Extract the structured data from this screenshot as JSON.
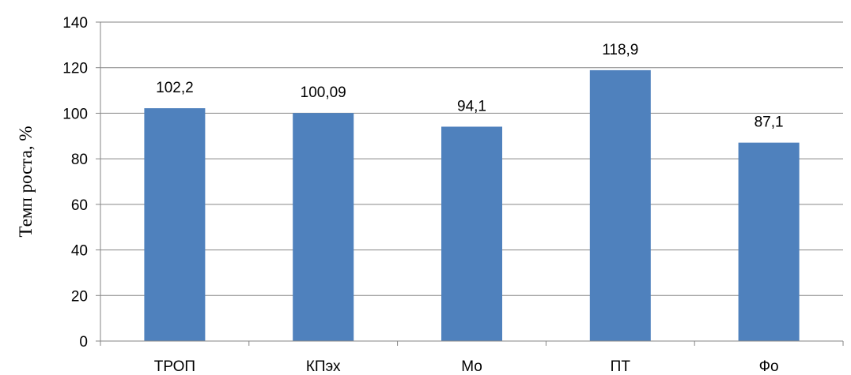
{
  "chart_data": {
    "type": "bar",
    "title": "",
    "xlabel": "",
    "ylabel": "Темп роста, %",
    "categories": [
      "ТРОП",
      "КПэх",
      "Мо",
      "ПТ",
      "Фо"
    ],
    "values": [
      102.2,
      100.09,
      94.1,
      118.9,
      87.1
    ],
    "data_labels": [
      "102,2",
      "100,09",
      "94,1",
      "118,9",
      "87,1"
    ],
    "ylim": [
      0,
      140
    ],
    "yticks": [
      "0",
      "20",
      "40",
      "60",
      "80",
      "100",
      "120",
      "140"
    ],
    "grid": true,
    "legend": "none",
    "bar_color": "#4f81bd",
    "grid_color": "#868686"
  }
}
